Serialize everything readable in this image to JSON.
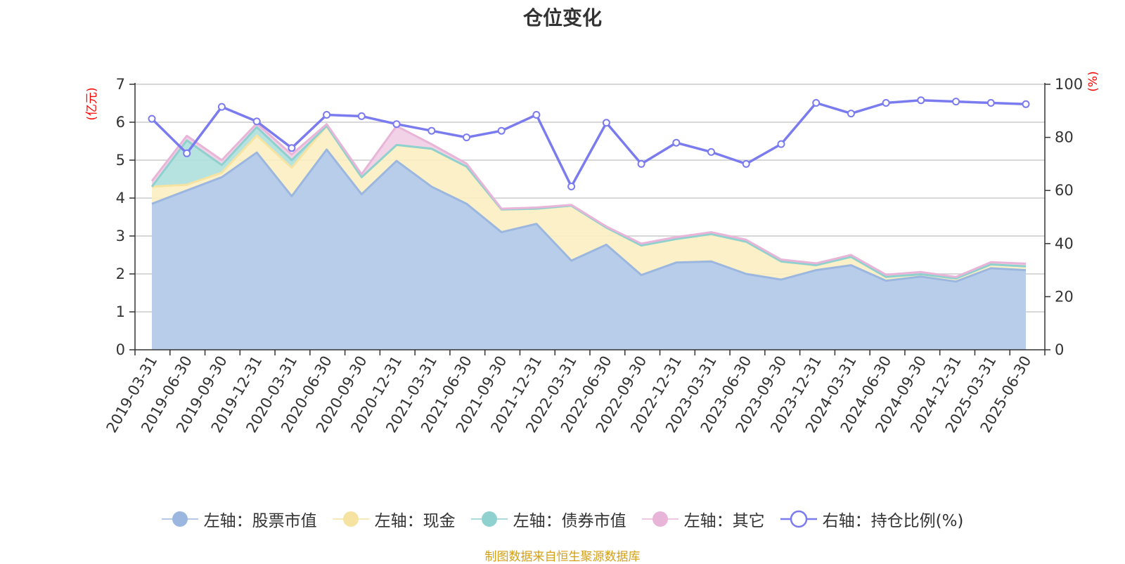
{
  "title": "仓位变化",
  "source_note": "制图数据来自恒生聚源数据库",
  "colors": {
    "stock": "#9bb7e0",
    "stock_fill": "#b8cdea",
    "cash": "#f6e3a1",
    "cash_fill": "#fbeec2",
    "bond": "#8fd1cf",
    "bond_fill": "#aee0dd",
    "other": "#e8b5d8",
    "other_fill": "#f0cde4",
    "ratio": "#7b7bf0",
    "axis": "#333333",
    "grid": "#cccccc",
    "unit": "#ff0000"
  },
  "chart_data": {
    "type": "area",
    "title": "仓位变化",
    "left_axis": {
      "unit": "(亿元)",
      "ylim": [
        0,
        7
      ],
      "ticks": [
        "0",
        "1",
        "2",
        "3",
        "4",
        "5",
        "6",
        "7"
      ]
    },
    "right_axis": {
      "unit": "(%)",
      "ylim": [
        0,
        100
      ],
      "ticks": [
        "0",
        "20",
        "40",
        "60",
        "80",
        "100"
      ]
    },
    "x": [
      "2019-03-31",
      "2019-06-30",
      "2019-09-30",
      "2019-12-31",
      "2020-03-31",
      "2020-06-30",
      "2020-09-30",
      "2020-12-31",
      "2021-03-31",
      "2021-06-30",
      "2021-09-30",
      "2021-12-31",
      "2022-03-31",
      "2022-06-30",
      "2022-09-30",
      "2022-12-31",
      "2023-03-31",
      "2023-06-30",
      "2023-09-30",
      "2023-12-31",
      "2024-03-31",
      "2024-06-30",
      "2024-09-30",
      "2024-12-31",
      "2025-03-31",
      "2025-06-30"
    ],
    "series": [
      {
        "name": "左轴：股票市值",
        "axis": "left",
        "stack": true,
        "values": [
          3.85,
          4.2,
          4.55,
          5.2,
          4.05,
          5.28,
          4.1,
          4.98,
          4.3,
          3.85,
          3.1,
          3.32,
          2.35,
          2.77,
          1.97,
          2.3,
          2.33,
          2.0,
          1.85,
          2.1,
          2.23,
          1.82,
          1.93,
          1.8,
          2.15,
          2.1
        ]
      },
      {
        "name": "左轴：现金",
        "axis": "left",
        "stack": true,
        "values": [
          0.45,
          0.15,
          0.12,
          0.45,
          0.75,
          0.62,
          0.45,
          0.42,
          1.0,
          0.98,
          0.6,
          0.4,
          1.45,
          0.45,
          0.78,
          0.62,
          0.72,
          0.85,
          0.48,
          0.13,
          0.22,
          0.1,
          0.06,
          0.08,
          0.1,
          0.1
        ]
      },
      {
        "name": "左轴：债券市值",
        "axis": "left",
        "stack": true,
        "values": [
          0,
          1.17,
          0.2,
          0.22,
          0.2,
          0,
          0,
          0,
          0,
          0,
          0,
          0,
          0,
          0,
          0,
          0,
          0,
          0,
          0,
          0,
          0,
          0,
          0,
          0,
          0,
          0
        ]
      },
      {
        "name": "左轴：其它",
        "axis": "left",
        "stack": true,
        "values": [
          0.15,
          0.12,
          0.13,
          0.1,
          0.15,
          0.05,
          0.08,
          0.5,
          0.12,
          0.08,
          0.02,
          0.03,
          0.02,
          0.03,
          0.05,
          0.05,
          0.05,
          0.05,
          0.05,
          0.05,
          0.05,
          0.06,
          0.06,
          0.04,
          0.06,
          0.07
        ]
      },
      {
        "name": "右轴：持仓比例(%)",
        "axis": "right",
        "stack": false,
        "values": [
          87.0,
          74.0,
          91.5,
          86.0,
          76.0,
          88.5,
          88.0,
          85.0,
          82.5,
          80.0,
          82.5,
          88.5,
          61.5,
          85.5,
          70.0,
          78.0,
          74.5,
          70.0,
          77.5,
          93.0,
          89.0,
          93.0,
          94.0,
          93.5,
          93.0,
          92.5
        ]
      }
    ],
    "legend_position": "bottom-center",
    "grid": true
  },
  "legend": [
    {
      "label": "左轴：股票市值",
      "key": "stock",
      "marker": "filled-circle"
    },
    {
      "label": "左轴：现金",
      "key": "cash",
      "marker": "filled-circle"
    },
    {
      "label": "左轴：债券市值",
      "key": "bond",
      "marker": "filled-circle"
    },
    {
      "label": "左轴：其它",
      "key": "other",
      "marker": "filled-circle"
    },
    {
      "label": "右轴：持仓比例(%)",
      "key": "ratio",
      "marker": "hollow-circle"
    }
  ]
}
